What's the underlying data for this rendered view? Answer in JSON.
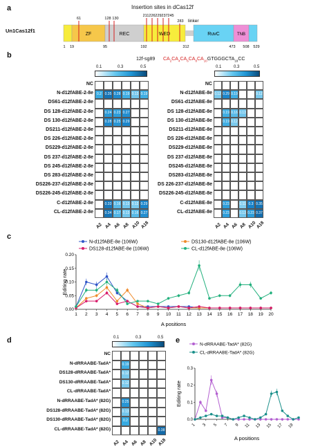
{
  "panel_a": {
    "letter": "a",
    "title": "Insertion sites in dCas12f",
    "protein_name": "Un1Cas12f1",
    "domains": [
      {
        "name": "ZF",
        "color": "#f6c74a"
      },
      {
        "name": "REC",
        "color": "#cfcfcf"
      },
      {
        "name": "WED",
        "color": "#f7ec3c"
      },
      {
        "name": "RuvC",
        "color": "#69d3f4"
      },
      {
        "name": "TNB",
        "color": "#ee8fd6"
      }
    ],
    "linker_label": "linker",
    "sites_top": [
      "61",
      "128",
      "130",
      "211",
      "226",
      "229",
      "237",
      "245",
      "283"
    ],
    "positions_bottom": [
      "1",
      "19",
      "95",
      "192",
      "312",
      "473",
      "508",
      "529"
    ]
  },
  "panel_b": {
    "letter": "b",
    "guide_name": "12f-sg89",
    "guide_seq": [
      {
        "t": "CA",
        "sub": "2",
        "red": true
      },
      {
        "t": "CA",
        "sub": "4",
        "red": true
      },
      {
        "t": "CA",
        "sub": "6",
        "red": true
      },
      {
        "t": "CA",
        "sub": "8",
        "red": true
      },
      {
        "t": "CA",
        "sub": "10",
        "red": true
      },
      {
        "t": "GTGGGCTA",
        "sub": "18",
        "red": false
      },
      {
        "t": "CC",
        "sub": "",
        "red": false
      }
    ],
    "colorbar_ticks": [
      "0.1",
      "0.3",
      "0.5"
    ],
    "columns": [
      "A2",
      "A4",
      "A6",
      "A8",
      "A10",
      "A18"
    ],
    "left": {
      "rows": [
        {
          "label": "NC",
          "values": [
            null,
            null,
            null,
            null,
            null,
            null
          ]
        },
        {
          "label": "N-d12fABE-2-8e",
          "values": [
            0.2,
            0.35,
            0.28,
            0.19,
            0.13,
            0.19
          ]
        },
        {
          "label": "DS61-d12fABE-2-8e",
          "values": [
            null,
            null,
            null,
            null,
            null,
            null
          ]
        },
        {
          "label": "DS 128-d12fABE-2-8e",
          "values": [
            null,
            0.24,
            0.23,
            0.27,
            null,
            null
          ]
        },
        {
          "label": "DS 130-d12fABE-2-8e",
          "values": [
            null,
            0.28,
            0.25,
            0.29,
            null,
            null
          ]
        },
        {
          "label": "DS211-d12fABE-2-8e",
          "values": [
            null,
            null,
            null,
            null,
            null,
            null
          ]
        },
        {
          "label": "DS 226-d12fABE-2-8e",
          "values": [
            null,
            null,
            null,
            null,
            null,
            null
          ]
        },
        {
          "label": "DS229-d12fABE-2-8e",
          "values": [
            null,
            null,
            null,
            null,
            null,
            null
          ]
        },
        {
          "label": "DS 237-d12fABE-2-8e",
          "values": [
            null,
            null,
            null,
            null,
            null,
            null
          ]
        },
        {
          "label": "DS 245-d12fABE-2-8e",
          "values": [
            null,
            null,
            null,
            null,
            null,
            null
          ]
        },
        {
          "label": "DS 283-d12fABE-2-8e",
          "values": [
            null,
            null,
            null,
            null,
            null,
            null
          ]
        },
        {
          "label": "DS226-237-d12fABE-2-8e",
          "values": [
            null,
            null,
            null,
            null,
            null,
            null
          ]
        },
        {
          "label": "DS226-245-d12fABE-2-8e",
          "values": [
            null,
            null,
            null,
            null,
            null,
            null
          ]
        },
        {
          "label": "C-d12fABE-2-8e",
          "values": [
            null,
            0.33,
            0.16,
            0.13,
            0.12,
            0.29
          ]
        },
        {
          "label": "CL-d12fABE-2-8e",
          "values": [
            null,
            0.34,
            0.17,
            0.13,
            0.16,
            0.27
          ]
        }
      ]
    },
    "right": {
      "rows": [
        {
          "label": "NC",
          "values": [
            null,
            null,
            null,
            null,
            null,
            null
          ]
        },
        {
          "label": "N-d12fABE-8e",
          "values": [
            0.12,
            0.29,
            0.19,
            null,
            null,
            0.12
          ]
        },
        {
          "label": "DS61-d12fABE-8e",
          "values": [
            null,
            null,
            null,
            null,
            null,
            null
          ]
        },
        {
          "label": "DS 128-d12fABE-8e",
          "values": [
            null,
            0.19,
            0.16,
            0.13,
            null,
            null
          ]
        },
        {
          "label": "DS 130-d12fABE-8e",
          "values": [
            null,
            0.19,
            0.12,
            null,
            null,
            null
          ]
        },
        {
          "label": "DS211-d12fABE-8e",
          "values": [
            null,
            null,
            null,
            null,
            null,
            null
          ]
        },
        {
          "label": "DS 226-d12fABE-8e",
          "values": [
            null,
            null,
            null,
            null,
            null,
            null
          ]
        },
        {
          "label": "DS229-d12fABE-8e",
          "values": [
            null,
            null,
            null,
            null,
            null,
            null
          ]
        },
        {
          "label": "DS 237-d12fABE-8e",
          "values": [
            null,
            null,
            null,
            null,
            null,
            null
          ]
        },
        {
          "label": "DS245-d12fABE-8e",
          "values": [
            null,
            null,
            null,
            null,
            null,
            null
          ]
        },
        {
          "label": "DS283-d12fABE-8e",
          "values": [
            null,
            null,
            null,
            null,
            null,
            null
          ]
        },
        {
          "label": "DS 226-237-d12fABE-8e",
          "values": [
            null,
            null,
            null,
            null,
            null,
            null
          ]
        },
        {
          "label": "DS226-245-d12fABE-8e",
          "values": [
            null,
            null,
            null,
            null,
            null,
            null
          ]
        },
        {
          "label": "C-d12fABE-8e",
          "values": [
            null,
            0.23,
            null,
            0.11,
            0.3,
            0.35
          ]
        },
        {
          "label": "CL-d12fABE-8e",
          "values": [
            null,
            0.23,
            null,
            0.13,
            0.23,
            0.37
          ]
        }
      ]
    }
  },
  "panel_c": {
    "letter": "c",
    "ylabel": "Editing rate",
    "xlabel": "A positions",
    "legend": [
      {
        "name": "N-d12fABE-8e (106W)",
        "color": "#2f55c8"
      },
      {
        "name": "DS130-d12fABE-8e (106W)",
        "color": "#ef8a2a"
      },
      {
        "name": "DS128-d12fABE-8e (106W)",
        "color": "#d81b6a"
      },
      {
        "name": "CL-d12fABE-8e (106W)",
        "color": "#22b07d"
      }
    ],
    "yticks": [
      "0.00",
      "0.05",
      "0.10",
      "0.15",
      "0.20"
    ],
    "xticks": [
      "1",
      "2",
      "3",
      "4",
      "5",
      "6",
      "7",
      "8",
      "9",
      "10",
      "11",
      "12",
      "13",
      "14",
      "15",
      "16",
      "17",
      "18",
      "19",
      "20"
    ]
  },
  "panel_d": {
    "letter": "d",
    "colorbar_ticks": [
      "0.1",
      "0.3",
      "0.5"
    ],
    "columns": [
      "A2",
      "A4",
      "A6",
      "A8",
      "A10",
      "A18"
    ],
    "rows": [
      {
        "label": "NC",
        "values": [
          null,
          null,
          null,
          null,
          null,
          null
        ]
      },
      {
        "label": "N-dRRAABE-TadA*",
        "values": [
          null,
          0.19,
          null,
          null,
          null,
          null
        ]
      },
      {
        "label": "DS128-dRRAABE-TadA*",
        "values": [
          null,
          0.12,
          null,
          null,
          null,
          null
        ]
      },
      {
        "label": "DS130-dRRAABE-TadA*",
        "values": [
          null,
          0.12,
          null,
          null,
          null,
          null
        ]
      },
      {
        "label": "CL-dRRAABE-TadA*",
        "values": [
          null,
          null,
          null,
          null,
          null,
          null
        ]
      },
      {
        "label": "N-dRRAABE-TadA* (82G)",
        "values": [
          null,
          0.25,
          null,
          null,
          null,
          null
        ]
      },
      {
        "label": "DS128-dRRAABE-TadA* (82G)",
        "values": [
          null,
          0.13,
          null,
          null,
          null,
          null
        ]
      },
      {
        "label": "DS130-dRRAABE-TadA* (82G)",
        "values": [
          null,
          0.2,
          null,
          null,
          null,
          null
        ]
      },
      {
        "label": "CL-dRRAABE-TadA* (82G)",
        "values": [
          null,
          null,
          null,
          null,
          null,
          0.38
        ]
      }
    ]
  },
  "panel_e": {
    "letter": "e",
    "ylabel": "Editing rate",
    "xlabel": "A positions",
    "legend": [
      {
        "name": "N-dRRAABE-TadA* (82G)",
        "color": "#b35fd0"
      },
      {
        "name": "CL-dRRAABE-TadA* (82G)",
        "color": "#1a8f8a"
      }
    ],
    "yticks": [
      "0.0",
      "0.1",
      "0.2",
      "0.3"
    ],
    "xticks": [
      "1",
      "3",
      "5",
      "7",
      "9",
      "11",
      "13",
      "15",
      "17",
      "19"
    ]
  },
  "chart_data": [
    {
      "type": "line",
      "panel": "c",
      "xlabel": "A positions",
      "ylabel": "Editing rate",
      "ylim": [
        0,
        0.2
      ],
      "x": [
        1,
        2,
        3,
        4,
        5,
        6,
        7,
        8,
        9,
        10,
        11,
        12,
        13,
        14,
        15,
        16,
        17,
        18,
        19,
        20
      ],
      "series": [
        {
          "name": "N-d12fABE-8e (106W)",
          "values": [
            0.01,
            0.1,
            0.09,
            0.12,
            0.06,
            0.03,
            0.01,
            0.01,
            0.01,
            0.01,
            0.01,
            0.01,
            0.005,
            0.005,
            0.005,
            0.005,
            0.005,
            0.005,
            0.005,
            0.005
          ]
        },
        {
          "name": "DS130-d12fABE-8e (106W)",
          "values": [
            0.005,
            0.04,
            0.05,
            0.08,
            0.03,
            0.07,
            0.02,
            0.005,
            0.01,
            0.005,
            0.01,
            0.005,
            0.005,
            0.005,
            0.005,
            0.005,
            0.005,
            0.005,
            0.005,
            0.005
          ]
        },
        {
          "name": "DS128-d12fABE-8e (106W)",
          "values": [
            0.005,
            0.03,
            0.03,
            0.06,
            0.02,
            0.03,
            0.01,
            0.005,
            0.01,
            0.005,
            0.01,
            0.005,
            0.01,
            0.005,
            0.005,
            0.005,
            0.005,
            0.005,
            0.005,
            0.005
          ]
        },
        {
          "name": "CL-d12fABE-8e (106W)",
          "values": [
            0.01,
            0.07,
            0.07,
            0.1,
            0.07,
            0.02,
            0.03,
            0.03,
            0.02,
            0.04,
            0.05,
            0.06,
            0.16,
            0.04,
            0.05,
            0.05,
            0.09,
            0.09,
            0.04,
            0.06
          ]
        }
      ]
    },
    {
      "type": "line",
      "panel": "e",
      "xlabel": "A positions",
      "ylabel": "Editing rate",
      "ylim": [
        0,
        0.3
      ],
      "x": [
        1,
        2,
        3,
        4,
        5,
        6,
        7,
        8,
        9,
        10,
        11,
        12,
        13,
        14,
        15,
        16,
        17,
        18,
        19,
        20
      ],
      "series": [
        {
          "name": "N-dRRAABE-TadA* (82G)",
          "values": [
            0.0,
            0.1,
            0.05,
            0.23,
            0.15,
            0.01,
            0.01,
            0.0,
            0.0,
            0.0,
            0.0,
            0.0,
            0.0,
            0.0,
            0.0,
            0.0,
            0.0,
            0.0,
            0.0,
            0.0
          ]
        },
        {
          "name": "CL-dRRAABE-TadA* (82G)",
          "values": [
            0.0,
            0.01,
            0.02,
            0.03,
            0.02,
            0.02,
            0.01,
            0.0,
            0.01,
            0.02,
            0.01,
            0.0,
            0.01,
            0.03,
            0.15,
            0.16,
            0.05,
            0.02,
            0.0,
            0.01
          ]
        }
      ]
    }
  ]
}
